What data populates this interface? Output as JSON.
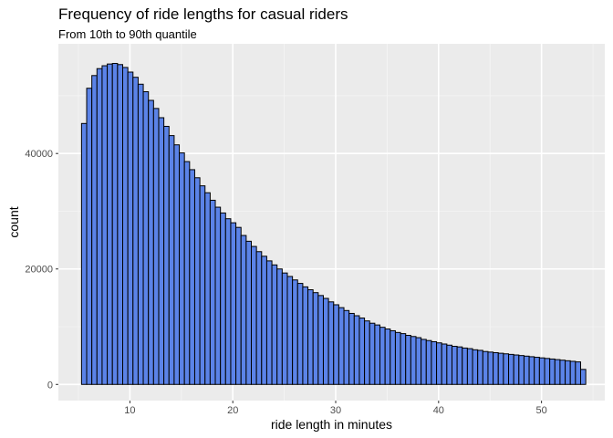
{
  "chart_data": {
    "type": "bar",
    "title": "Frequency of ride lengths for casual riders",
    "subtitle": "From 10th to 90th quantile",
    "xlabel": "ride length in minutes",
    "ylabel": "count",
    "xlim": [
      3.05,
      56.15
    ],
    "ylim": [
      -2800,
      59000
    ],
    "x_ticks": [
      10,
      20,
      30,
      40,
      50
    ],
    "y_ticks": [
      0,
      20000,
      40000
    ],
    "x_tick_labels": [
      "10",
      "20",
      "30",
      "40",
      "50"
    ],
    "y_tick_labels": [
      "0",
      "20000",
      "40000"
    ],
    "grid": true,
    "bin_start": 5.3,
    "bin_width": 0.5,
    "values": [
      45200,
      51300,
      53500,
      54700,
      55200,
      55500,
      55600,
      55400,
      54900,
      54100,
      53200,
      52000,
      50700,
      49200,
      47800,
      46200,
      44700,
      43100,
      41500,
      40100,
      38600,
      37200,
      35800,
      34400,
      33200,
      31900,
      30700,
      29700,
      28700,
      28000,
      27200,
      25800,
      24800,
      23900,
      23000,
      22200,
      21400,
      20700,
      20000,
      19300,
      18700,
      18100,
      17500,
      16900,
      16400,
      15900,
      15400,
      14900,
      14300,
      13800,
      13300,
      12800,
      12300,
      11900,
      11500,
      11000,
      10600,
      10300,
      9900,
      9600,
      9300,
      9000,
      8800,
      8500,
      8300,
      8100,
      7800,
      7600,
      7400,
      7200,
      7000,
      6800,
      6600,
      6500,
      6300,
      6200,
      6000,
      5900,
      5700,
      5600,
      5500,
      5400,
      5300,
      5200,
      5100,
      5000,
      4900,
      4800,
      4700,
      4600,
      4500,
      4400,
      4300,
      4200,
      4100,
      4000,
      3900,
      2600
    ],
    "colors": {
      "panel": "#ebebeb",
      "grid_major": "#ffffff",
      "grid_minor": "#f5f5f5",
      "bar_fill": "#5b83e8",
      "bar_stroke": "#000000",
      "tick_text": "#4d4d4d"
    }
  }
}
